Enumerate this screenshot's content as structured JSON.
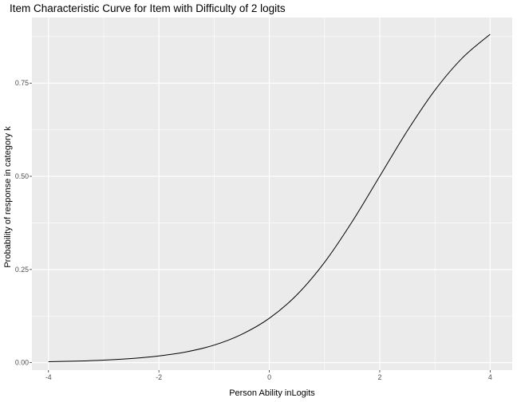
{
  "chart_data": {
    "type": "line",
    "title": "Item Characteristic Curve for Item with Difficulty of 2 logits",
    "xlabel": "Person Ability inLogits",
    "ylabel": "Probability of response in category k",
    "xlim": [
      -4.3,
      4.4
    ],
    "ylim": [
      -0.02,
      0.926
    ],
    "x_ticks": [
      -4,
      -2,
      0,
      2,
      4
    ],
    "x_tick_labels": [
      "-4",
      "-2",
      "0",
      "2",
      "4"
    ],
    "y_ticks": [
      0,
      0.25,
      0.5,
      0.75
    ],
    "y_tick_labels": [
      "0.00",
      "0.25",
      "0.50",
      "0.75"
    ],
    "grid": true,
    "series": [
      {
        "x": [
          -4,
          -3.5,
          -3,
          -2.5,
          -2,
          -1.5,
          -1,
          -0.5,
          0,
          0.5,
          1,
          1.5,
          2,
          2.5,
          3,
          3.5,
          4
        ],
        "y": [
          0.0025,
          0.0041,
          0.0067,
          0.011,
          0.018,
          0.029,
          0.047,
          0.076,
          0.119,
          0.182,
          0.269,
          0.378,
          0.5,
          0.622,
          0.731,
          0.818,
          0.881
        ],
        "color": "#000000"
      }
    ]
  }
}
